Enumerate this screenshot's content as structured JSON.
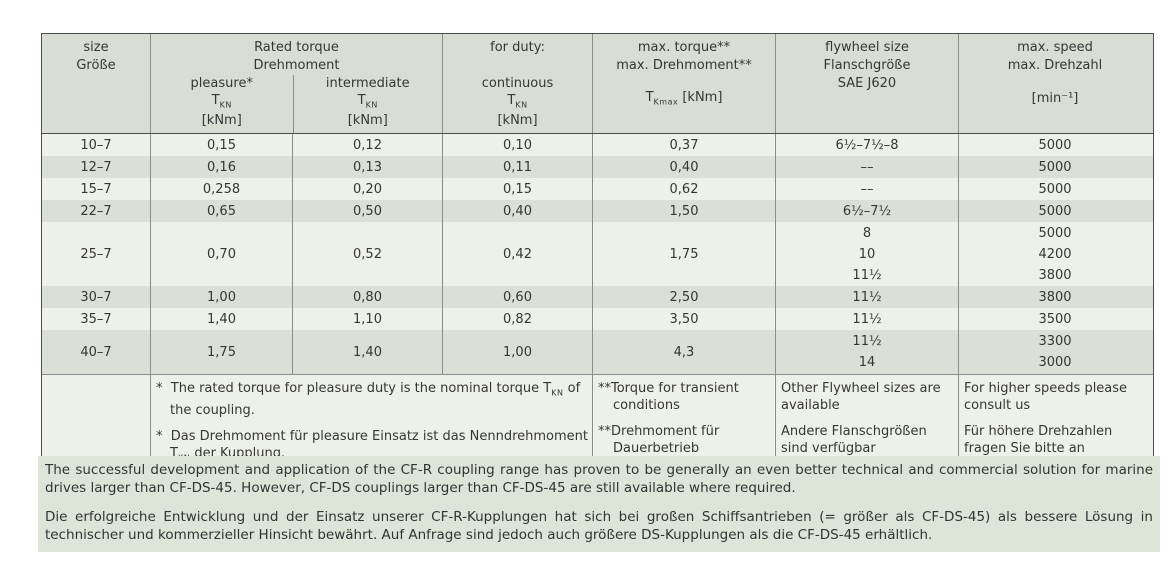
{
  "colors": {
    "header_bg": "#d8ded3",
    "row_light": "#eef1ea",
    "row_dark": "#dbe0d6",
    "paragraph_bg": "#dde5d8",
    "border_dark": "#4d4d4d",
    "border_mid": "#8c8c8c",
    "text": "#363636"
  },
  "table": {
    "header": {
      "size_en": "size",
      "size_de": "Größe",
      "rated_en": "Rated torque",
      "rated_de": "Drehmoment",
      "pleasure_label": "pleasure*",
      "intermediate_label": "intermediate",
      "duty_label": "for duty:",
      "continuous_label": "continuous",
      "sym_T": "T",
      "sym_KN": "KN",
      "sym_Kmax": "Kmax",
      "unit_knm": "[kNm]",
      "unit_knm_spaced": " [kNm]",
      "maxtorque_en": "max. torque**",
      "maxtorque_de": "max. Drehmoment**",
      "flywheel_en": "flywheel size",
      "flywheel_de": "Flanschgröße",
      "flywheel_std": "SAE J620",
      "speed_en": "max. speed",
      "speed_de": "max. Drehzahl",
      "speed_unit": "[min⁻¹]"
    },
    "rows": [
      {
        "size": "10–7",
        "pleasure": "0,15",
        "intermediate": "0,12",
        "continuous": "0,10",
        "max_torque": "0,37",
        "flywheel": [
          "6½–7½–8"
        ],
        "speed": [
          "5000"
        ]
      },
      {
        "size": "12–7",
        "pleasure": "0,16",
        "intermediate": "0,13",
        "continuous": "0,11",
        "max_torque": "0,40",
        "flywheel": [
          "––"
        ],
        "speed": [
          "5000"
        ]
      },
      {
        "size": "15–7",
        "pleasure": "0,258",
        "intermediate": "0,20",
        "continuous": "0,15",
        "max_torque": "0,62",
        "flywheel": [
          "––"
        ],
        "speed": [
          "5000"
        ]
      },
      {
        "size": "22–7",
        "pleasure": "0,65",
        "intermediate": "0,50",
        "continuous": "0,40",
        "max_torque": "1,50",
        "flywheel": [
          "6½–7½"
        ],
        "speed": [
          "5000"
        ]
      },
      {
        "size": "25–7",
        "pleasure": "0,70",
        "intermediate": "0,52",
        "continuous": "0,42",
        "max_torque": "1,75",
        "flywheel": [
          "8",
          "10",
          "11½"
        ],
        "speed": [
          "5000",
          "4200",
          "3800"
        ]
      },
      {
        "size": "30–7",
        "pleasure": "1,00",
        "intermediate": "0,80",
        "continuous": "0,60",
        "max_torque": "2,50",
        "flywheel": [
          "11½"
        ],
        "speed": [
          "3800"
        ]
      },
      {
        "size": "35–7",
        "pleasure": "1,40",
        "intermediate": "1,10",
        "continuous": "0,82",
        "max_torque": "3,50",
        "flywheel": [
          "11½"
        ],
        "speed": [
          "3500"
        ]
      },
      {
        "size": "40–7",
        "pleasure": "1,75",
        "intermediate": "1,40",
        "continuous": "1,00",
        "max_torque": "4,3",
        "flywheel": [
          "11½",
          "14"
        ],
        "speed": [
          "3300",
          "3000"
        ]
      }
    ],
    "footnotes": {
      "star_marker": "*",
      "dstar_marker": "**",
      "star1_en_pre": "The rated torque for pleasure duty is the nominal torque T",
      "star1_sub": "KN",
      "star1_en_post": " of the coupling.",
      "star1_de_pre": "Das Drehmoment für pleasure Einsatz ist das Nenndrehmoment T",
      "star1_de_post": " der Kupplung.",
      "dstar_en": "Torque for transient conditions",
      "dstar_de": "Drehmoment für Dauerbetrieb",
      "flywheel_en": "Other Flywheel sizes are available",
      "flywheel_de": "Andere Flanschgrößen sind verfügbar",
      "speed_en": "For higher speeds please consult us",
      "speed_de": "Für höhere Drehzahlen fragen Sie bitte an"
    }
  },
  "paragraphs": {
    "en": "The successful development and application of the CF-R coupling range has proven to be generally an even better technical and commercial solution for marine drives larger than CF-DS-45. However, CF-DS couplings larger than CF-DS-45 are still available where required.",
    "de": "Die erfolgreiche Entwicklung und der Einsatz unserer CF-R-Kupplungen hat sich bei großen Schiffsantrieben (= größer als CF-DS-45) als bessere Lösung in technischer und kommerzieller Hinsicht bewährt. Auf Anfrage sind jedoch auch größere DS-Kupplungen als die CF-DS-45 erhältlich."
  }
}
